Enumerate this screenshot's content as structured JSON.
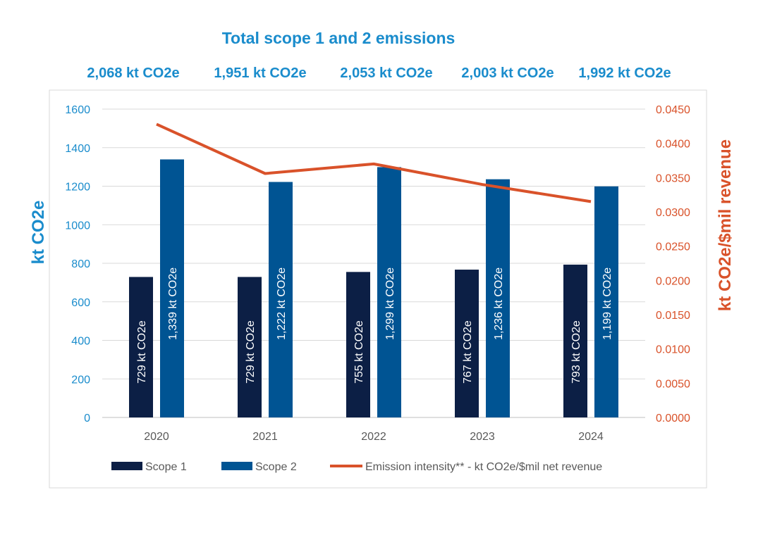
{
  "chart_data": {
    "type": "bar",
    "title": "Total scope 1 and 2 emissions",
    "totals": [
      "2,068 kt CO2e",
      "1,951 kt CO2e",
      "2,053 kt CO2e",
      "2,003 kt CO2e",
      "1,992 kt CO2e"
    ],
    "categories": [
      "2020",
      "2021",
      "2022",
      "2023",
      "2024"
    ],
    "ylabel": "kt CO2e",
    "y2label": "kt CO2e/$mil revenue",
    "ylim": [
      0,
      1600
    ],
    "y2lim": [
      0,
      0.045
    ],
    "yticks": [
      "0",
      "200",
      "400",
      "600",
      "800",
      "1000",
      "1200",
      "1400",
      "1600"
    ],
    "y2ticks": [
      "0.0000",
      "0.0050",
      "0.0100",
      "0.0150",
      "0.0200",
      "0.0250",
      "0.0300",
      "0.0350",
      "0.0400",
      "0.0450"
    ],
    "grid": true,
    "legend_position": "bottom",
    "series": [
      {
        "name": "Scope 1",
        "type": "bar",
        "color": "#0c1f45",
        "values": [
          729,
          729,
          755,
          767,
          793
        ],
        "labels": [
          "729 kt CO2e",
          "729 kt CO2e",
          "755 kt CO2e",
          "767 kt CO2e",
          "793 kt CO2e"
        ]
      },
      {
        "name": "Scope 2",
        "type": "bar",
        "color": "#005493",
        "values": [
          1339,
          1222,
          1299,
          1236,
          1199
        ],
        "labels": [
          "1,339 kt CO2e",
          "1,222 kt CO2e",
          "1,299 kt CO2e",
          "1,236 kt CO2e",
          "1,199 kt CO2e"
        ]
      },
      {
        "name": "Emission intensity** - kt CO2e/$mil net revenue",
        "type": "line",
        "axis": "right",
        "color": "#d9522a",
        "values": [
          0.0428,
          0.0356,
          0.037,
          0.034,
          0.0315
        ]
      }
    ]
  }
}
